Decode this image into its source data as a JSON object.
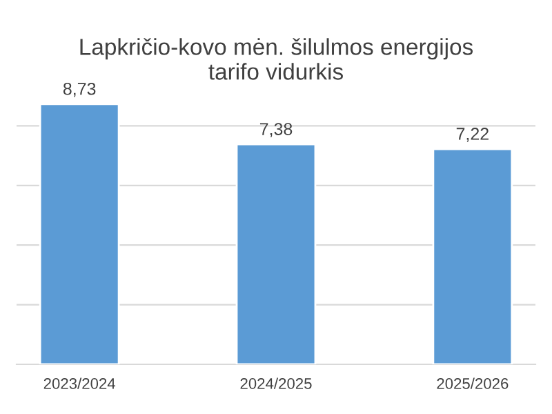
{
  "chart_data": {
    "type": "bar",
    "title": "Lapkričio-kovo mėn. šilulmos energijos\ntarifo vidurkis",
    "categories": [
      "2023/2024",
      "2024/2025",
      "2025/2026"
    ],
    "values": [
      8.73,
      7.38,
      7.22
    ],
    "value_labels": [
      "8,73",
      "7,38",
      "7,22"
    ],
    "color": "#5b9bd5",
    "grid": "y",
    "tick_labels": "x",
    "legend": false
  }
}
